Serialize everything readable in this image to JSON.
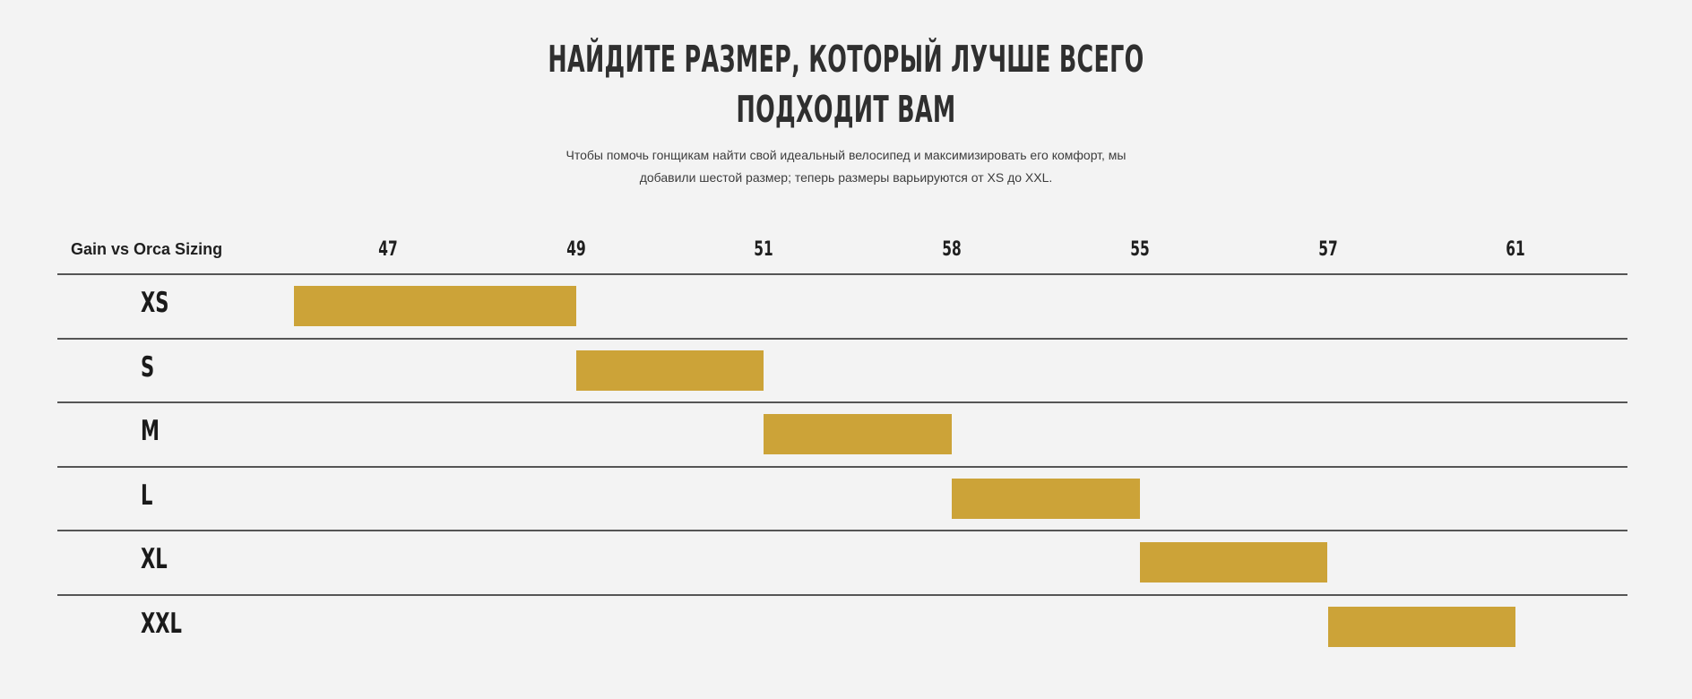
{
  "title_line1": "НАЙДИТЕ РАЗМЕР, КОТОРЫЙ ЛУЧШЕ ВСЕГО",
  "title_line2": "ПОДХОДИТ ВАМ",
  "subtitle_line1": "Чтобы помочь гонщикам найти свой идеальный велосипед и максимизировать его комфорт, мы",
  "subtitle_line2": "добавили шестой размер; теперь размеры варьируются от XS до XXL.",
  "colors": {
    "bar": "#cca338",
    "background": "#f3f3f3",
    "rule": "#555555"
  },
  "chart_data": {
    "type": "table",
    "corner_label": "Gain vs Orca Sizing",
    "columns": [
      "47",
      "49",
      "51",
      "58",
      "55",
      "57",
      "61"
    ],
    "rows": [
      {
        "label": "XS",
        "start": 0,
        "end": 1.5
      },
      {
        "label": "S",
        "start": 1.5,
        "end": 2.5
      },
      {
        "label": "M",
        "start": 2.5,
        "end": 3.5
      },
      {
        "label": "L",
        "start": 3.5,
        "end": 4.5
      },
      {
        "label": "XL",
        "start": 4.5,
        "end": 5.5
      },
      {
        "label": "XXL",
        "start": 5.5,
        "end": 6.5
      }
    ]
  }
}
